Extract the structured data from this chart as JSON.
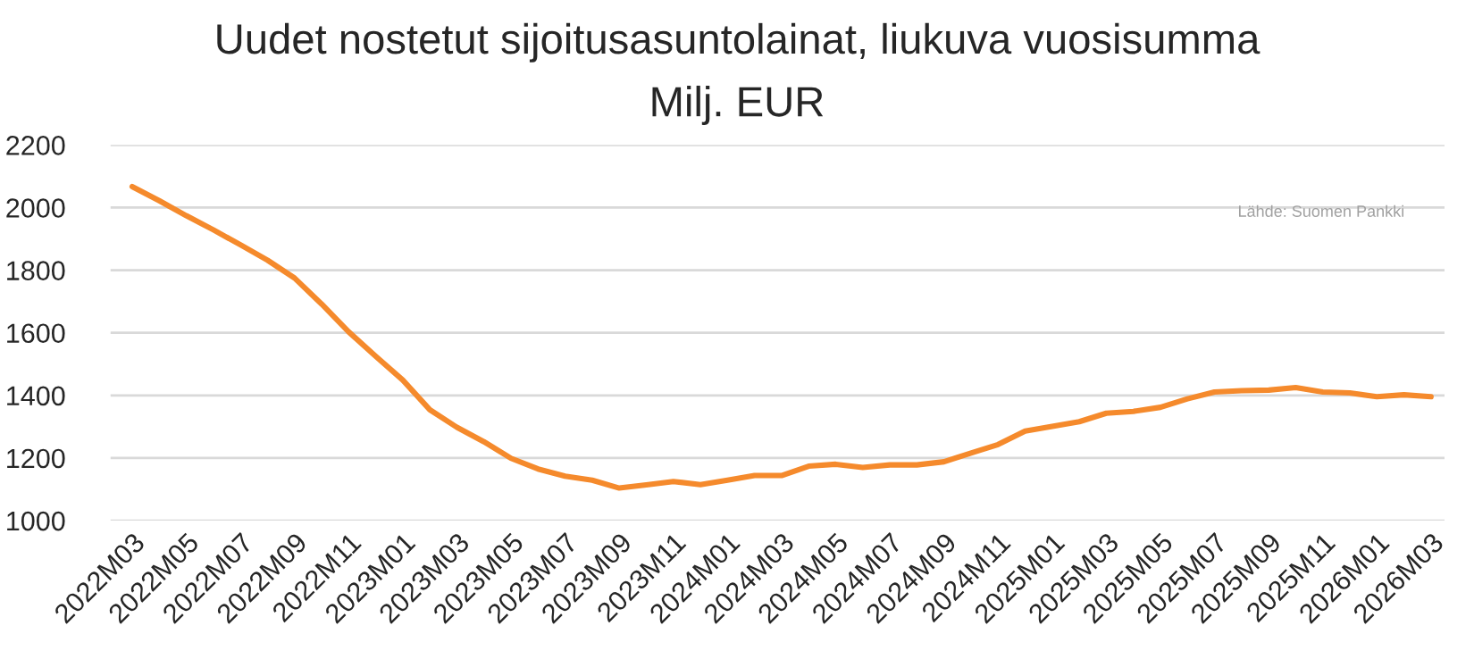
{
  "chart_data": {
    "type": "line",
    "title": "Uudet nostetut sijoitusasuntolainat, liukuva vuosisumma",
    "subtitle": "Milj. EUR",
    "categories": [
      "2022M03",
      null,
      "2022M05",
      null,
      "2022M07",
      null,
      "2022M09",
      null,
      "2022M11",
      null,
      "2023M01",
      null,
      "2023M03",
      null,
      "2023M05",
      null,
      "2023M07",
      null,
      "2023M09",
      null,
      "2023M11",
      null,
      "2024M01",
      null,
      "2024M03",
      null,
      "2024M05",
      null,
      "2024M07",
      null,
      "2024M09",
      null,
      "2024M11",
      null,
      "2025M01",
      null,
      "2025M03",
      null,
      "2025M05",
      null,
      "2025M07",
      null,
      "2025M09",
      null,
      "2025M11",
      null,
      "2026M01",
      null,
      "2026M03"
    ],
    "series": [
      {
        "color": "#f58a2c",
        "values": [
          2067,
          2022,
          1974,
          1929,
          1881,
          1832,
          1775,
          1692,
          1603,
          1525,
          1449,
          1354,
          1298,
          1252,
          1199,
          1165,
          1142,
          1129,
          1104,
          1114,
          1125,
          1115,
          1129,
          1144,
          1144,
          1174,
          1180,
          1170,
          1178,
          1178,
          1188,
          1216,
          1243,
          1286,
          1301,
          1316,
          1343,
          1349,
          1362,
          1389,
          1411,
          1415,
          1417,
          1425,
          1411,
          1408,
          1396,
          1402,
          1396
        ]
      }
    ],
    "ylim": [
      1000,
      2200
    ],
    "yticks": [
      1000,
      1200,
      1400,
      1600,
      1800,
      2000,
      2200
    ],
    "grid": "y",
    "legend": false,
    "marker": "none",
    "line_style": "solid",
    "annotations": [
      "Lähde: Suomen Pankki"
    ]
  }
}
